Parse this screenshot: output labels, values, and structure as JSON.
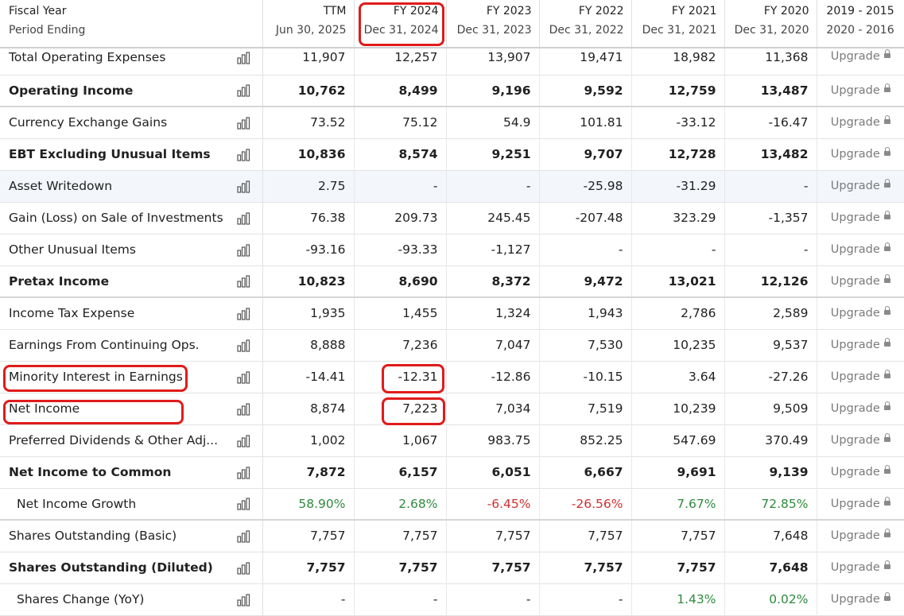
{
  "header": {
    "col0_line1": "Fiscal Year",
    "col0_line2": "Period Ending",
    "periods": [
      {
        "label": "TTM",
        "date": "Jun 30, 2025"
      },
      {
        "label": "FY 2024",
        "date": "Dec 31, 2024"
      },
      {
        "label": "FY 2023",
        "date": "Dec 31, 2023"
      },
      {
        "label": "FY 2022",
        "date": "Dec 31, 2022"
      },
      {
        "label": "FY 2021",
        "date": "Dec 31, 2021"
      },
      {
        "label": "FY 2020",
        "date": "Dec 31, 2020"
      },
      {
        "label": "2019 - 2015",
        "date": "2020 - 2016"
      }
    ]
  },
  "upgrade_label": "Upgrade",
  "colors": {
    "highlight_ring": "#e01b1b",
    "positive": "#2e8b3c",
    "negative": "#d32f2f",
    "hover_row": "#f3f7fc"
  },
  "highlighted": [
    "FY 2024 header",
    "Minority Interest in Earnings",
    "Net Income",
    "FY 2024 Minority Interest value",
    "FY 2024 Net Income value"
  ],
  "rows": [
    {
      "label": "Total Operating Expenses",
      "bold": false,
      "values": [
        "11,907",
        "12,257",
        "13,907",
        "19,471",
        "18,982",
        "11,368"
      ]
    },
    {
      "label": "Operating Income",
      "bold": true,
      "values": [
        "10,762",
        "8,499",
        "9,196",
        "9,592",
        "12,759",
        "13,487"
      ]
    },
    {
      "label": "Currency Exchange Gains",
      "bold": false,
      "values": [
        "73.52",
        "75.12",
        "54.9",
        "101.81",
        "-33.12",
        "-16.47"
      ]
    },
    {
      "label": "EBT Excluding Unusual Items",
      "bold": true,
      "values": [
        "10,836",
        "8,574",
        "9,251",
        "9,707",
        "12,728",
        "13,482"
      ]
    },
    {
      "label": "Asset Writedown",
      "bold": false,
      "values": [
        "2.75",
        "-",
        "-",
        "-25.98",
        "-31.29",
        "-"
      ]
    },
    {
      "label": "Gain (Loss) on Sale of Investments",
      "bold": false,
      "values": [
        "76.38",
        "209.73",
        "245.45",
        "-207.48",
        "323.29",
        "-1,357"
      ]
    },
    {
      "label": "Other Unusual Items",
      "bold": false,
      "values": [
        "-93.16",
        "-93.33",
        "-1,127",
        "-",
        "-",
        "-"
      ]
    },
    {
      "label": "Pretax Income",
      "bold": true,
      "values": [
        "10,823",
        "8,690",
        "8,372",
        "9,472",
        "13,021",
        "12,126"
      ]
    },
    {
      "label": "Income Tax Expense",
      "bold": false,
      "values": [
        "1,935",
        "1,455",
        "1,324",
        "1,943",
        "2,786",
        "2,589"
      ]
    },
    {
      "label": "Earnings From Continuing Ops.",
      "bold": false,
      "values": [
        "8,888",
        "7,236",
        "7,047",
        "7,530",
        "10,235",
        "9,537"
      ]
    },
    {
      "label": "Minority Interest in Earnings",
      "bold": false,
      "values": [
        "-14.41",
        "-12.31",
        "-12.86",
        "-10.15",
        "3.64",
        "-27.26"
      ]
    },
    {
      "label": "Net Income",
      "bold": false,
      "values": [
        "8,874",
        "7,223",
        "7,034",
        "7,519",
        "10,239",
        "9,509"
      ]
    },
    {
      "label": "Preferred Dividends & Other Adj...",
      "bold": false,
      "values": [
        "1,002",
        "1,067",
        "983.75",
        "852.25",
        "547.69",
        "370.49"
      ]
    },
    {
      "label": "Net Income to Common",
      "bold": true,
      "values": [
        "7,872",
        "6,157",
        "6,051",
        "6,667",
        "9,691",
        "9,139"
      ]
    },
    {
      "label": "Net Income Growth",
      "bold": false,
      "values": [
        "58.90%",
        "2.68%",
        "-6.45%",
        "-26.56%",
        "7.67%",
        "72.85%"
      ]
    },
    {
      "label": "Shares Outstanding (Basic)",
      "bold": false,
      "values": [
        "7,757",
        "7,757",
        "7,757",
        "7,757",
        "7,757",
        "7,648"
      ]
    },
    {
      "label": "Shares Outstanding (Diluted)",
      "bold": true,
      "values": [
        "7,757",
        "7,757",
        "7,757",
        "7,757",
        "7,757",
        "7,648"
      ]
    },
    {
      "label": "Shares Change (YoY)",
      "bold": false,
      "values": [
        "-",
        "-",
        "-",
        "-",
        "1.43%",
        "0.02%"
      ]
    }
  ]
}
